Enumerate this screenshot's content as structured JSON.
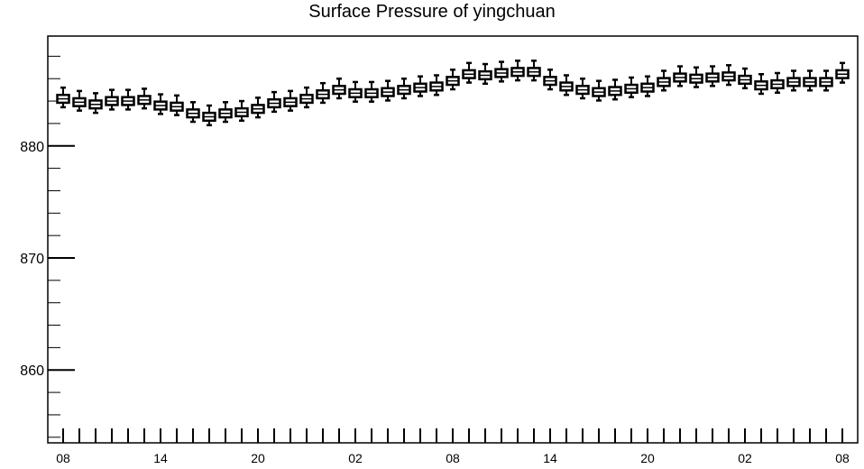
{
  "chart_data": {
    "type": "box",
    "title": "Surface Pressure of yingchuan",
    "xlabel": "",
    "ylabel": "",
    "ylim": [
      853.5,
      889.8
    ],
    "y_ticks": [
      860,
      870,
      880
    ],
    "y_tick_labels": [
      "860",
      "870",
      "880"
    ],
    "x_tick_labels": [
      "08",
      "14",
      "20",
      "02",
      "08",
      "14",
      "20",
      "02",
      "08"
    ],
    "hours": [
      "08",
      "09",
      "10",
      "11",
      "12",
      "13",
      "14",
      "15",
      "16",
      "17",
      "18",
      "19",
      "20",
      "21",
      "22",
      "23",
      "00",
      "01",
      "02",
      "03",
      "04",
      "05",
      "06",
      "07",
      "08",
      "09",
      "10",
      "11",
      "12",
      "13",
      "14",
      "15",
      "16",
      "17",
      "18",
      "19",
      "20",
      "21",
      "22",
      "23",
      "00",
      "01",
      "02",
      "03",
      "04",
      "05",
      "06",
      "07",
      "08"
    ],
    "medians": [
      884.2,
      883.9,
      883.7,
      884.0,
      884.0,
      884.1,
      883.6,
      883.5,
      882.9,
      882.6,
      882.9,
      883.0,
      883.3,
      883.8,
      883.9,
      884.2,
      884.6,
      885.0,
      884.7,
      884.7,
      884.8,
      885.0,
      885.2,
      885.3,
      885.8,
      886.4,
      886.3,
      886.5,
      886.6,
      886.6,
      885.8,
      885.3,
      885.0,
      884.8,
      884.9,
      885.1,
      885.2,
      885.7,
      886.1,
      886.0,
      886.1,
      886.2,
      885.9,
      885.4,
      885.5,
      885.7,
      885.7,
      885.7,
      886.4
    ],
    "grid": false,
    "legend": "none"
  }
}
